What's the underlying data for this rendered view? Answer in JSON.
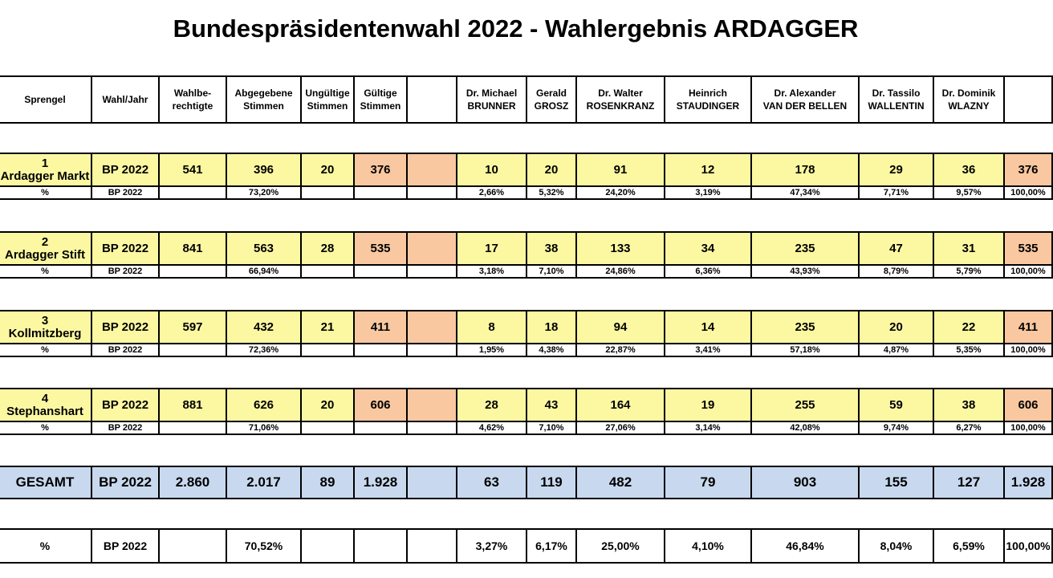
{
  "title": "Bundespräsidentenwahl 2022 - Wahlergebnis ARDAGGER",
  "header": [
    "Sprengel",
    "Wahl/Jahr",
    "Wahlbe-|rechtigte",
    "Abgegebene|Stimmen",
    "Ungültige|Stimmen",
    "Gültige|Stimmen",
    "",
    "Dr. Michael|BRUNNER",
    "Gerald|GROSZ",
    "Dr. Walter|ROSENKRANZ",
    "Heinrich|STAUDINGER",
    "Dr. Alexander|VAN DER BELLEN",
    "Dr. Tassilo|WALLENTIN",
    "Dr. Dominik|WLAZNY",
    ""
  ],
  "districts": [
    {
      "num": "1",
      "name": "Ardagger Markt",
      "wahl": "BP 2022",
      "berechtigte": "541",
      "abgegeben": "396",
      "ungueltig": "20",
      "gueltig": "376",
      "votes": [
        "10",
        "20",
        "91",
        "12",
        "178",
        "29",
        "36"
      ],
      "sum": "376",
      "pct_label": "%",
      "pct_wahl": "BP 2022",
      "pct_abgegeben": "73,20%",
      "pcts": [
        "2,66%",
        "5,32%",
        "24,20%",
        "3,19%",
        "47,34%",
        "7,71%",
        "9,57%"
      ],
      "pct_sum": "100,00%"
    },
    {
      "num": "2",
      "name": "Ardagger Stift",
      "wahl": "BP 2022",
      "berechtigte": "841",
      "abgegeben": "563",
      "ungueltig": "28",
      "gueltig": "535",
      "votes": [
        "17",
        "38",
        "133",
        "34",
        "235",
        "47",
        "31"
      ],
      "sum": "535",
      "pct_label": "%",
      "pct_wahl": "BP 2022",
      "pct_abgegeben": "66,94%",
      "pcts": [
        "3,18%",
        "7,10%",
        "24,86%",
        "6,36%",
        "43,93%",
        "8,79%",
        "5,79%"
      ],
      "pct_sum": "100,00%"
    },
    {
      "num": "3",
      "name": "Kollmitzberg",
      "wahl": "BP 2022",
      "berechtigte": "597",
      "abgegeben": "432",
      "ungueltig": "21",
      "gueltig": "411",
      "votes": [
        "8",
        "18",
        "94",
        "14",
        "235",
        "20",
        "22"
      ],
      "sum": "411",
      "pct_label": "%",
      "pct_wahl": "BP 2022",
      "pct_abgegeben": "72,36%",
      "pcts": [
        "1,95%",
        "4,38%",
        "22,87%",
        "3,41%",
        "57,18%",
        "4,87%",
        "5,35%"
      ],
      "pct_sum": "100,00%"
    },
    {
      "num": "4",
      "name": "Stephanshart",
      "wahl": "BP 2022",
      "berechtigte": "881",
      "abgegeben": "626",
      "ungueltig": "20",
      "gueltig": "606",
      "votes": [
        "28",
        "43",
        "164",
        "19",
        "255",
        "59",
        "38"
      ],
      "sum": "606",
      "pct_label": "%",
      "pct_wahl": "BP 2022",
      "pct_abgegeben": "71,06%",
      "pcts": [
        "4,62%",
        "7,10%",
        "27,06%",
        "3,14%",
        "42,08%",
        "9,74%",
        "6,27%"
      ],
      "pct_sum": "100,00%"
    }
  ],
  "total": {
    "label": "GESAMT",
    "wahl": "BP 2022",
    "berechtigte": "2.860",
    "abgegeben": "2.017",
    "ungueltig": "89",
    "gueltig": "1.928",
    "votes": [
      "63",
      "119",
      "482",
      "79",
      "903",
      "155",
      "127"
    ],
    "sum": "1.928"
  },
  "total_pct": {
    "label": "%",
    "wahl": "BP 2022",
    "abgegeben": "70,52%",
    "pcts": [
      "3,27%",
      "6,17%",
      "25,00%",
      "4,10%",
      "46,84%",
      "8,04%",
      "6,59%"
    ],
    "sum": "100,00%"
  },
  "colors": {
    "yellow": "#fcf8a2",
    "orange": "#f9c8a0",
    "blue": "#c8d9ef"
  }
}
